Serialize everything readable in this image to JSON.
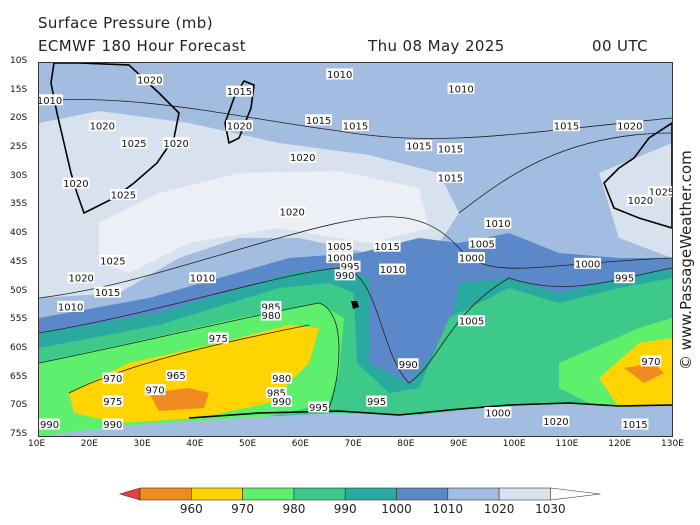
{
  "header": {
    "line1": "Surface Pressure (mb)",
    "line2": "ECMWF 180 Hour Forecast",
    "date": "Thu 08 May 2025",
    "time": "00 UTC"
  },
  "credit": "© www.PassageWeather.com",
  "map": {
    "lat_ticks": [
      "10S",
      "15S",
      "20S",
      "25S",
      "30S",
      "35S",
      "40S",
      "45S",
      "50S",
      "55S",
      "60S",
      "65S",
      "70S",
      "75S"
    ],
    "lon_ticks": [
      "10E",
      "20E",
      "30E",
      "40E",
      "50E",
      "60E",
      "70E",
      "80E",
      "90E",
      "100E",
      "110E",
      "120E",
      "130E"
    ],
    "isobar_labels": [
      {
        "text": "1010",
        "lon": 12,
        "lat": -16.5
      },
      {
        "text": "1020",
        "lon": 31,
        "lat": -13
      },
      {
        "text": "1015",
        "lon": 48,
        "lat": -15
      },
      {
        "text": "1010",
        "lon": 67,
        "lat": -12
      },
      {
        "text": "1010",
        "lon": 90,
        "lat": -14.5
      },
      {
        "text": "1015",
        "lon": 63,
        "lat": -20
      },
      {
        "text": "1015",
        "lon": 70,
        "lat": -21
      },
      {
        "text": "1020",
        "lon": 48,
        "lat": -21
      },
      {
        "text": "1015",
        "lon": 110,
        "lat": -21
      },
      {
        "text": "1020",
        "lon": 122,
        "lat": -21
      },
      {
        "text": "1020",
        "lon": 22,
        "lat": -21
      },
      {
        "text": "1025",
        "lon": 28,
        "lat": -24
      },
      {
        "text": "1020",
        "lon": 36,
        "lat": -24
      },
      {
        "text": "1015",
        "lon": 82,
        "lat": -24.5
      },
      {
        "text": "1015",
        "lon": 88,
        "lat": -25
      },
      {
        "text": "1020",
        "lon": 60,
        "lat": -26.5
      },
      {
        "text": "1015",
        "lon": 88,
        "lat": -30
      },
      {
        "text": "1020",
        "lon": 17,
        "lat": -31
      },
      {
        "text": "1025",
        "lon": 26,
        "lat": -33
      },
      {
        "text": "1025",
        "lon": 128,
        "lat": -32.5
      },
      {
        "text": "1020",
        "lon": 124,
        "lat": -34
      },
      {
        "text": "1020",
        "lon": 58,
        "lat": -36
      },
      {
        "text": "1010",
        "lon": 97,
        "lat": -38
      },
      {
        "text": "1015",
        "lon": 76,
        "lat": -42
      },
      {
        "text": "1005",
        "lon": 67,
        "lat": -42
      },
      {
        "text": "1005",
        "lon": 94,
        "lat": -41.5
      },
      {
        "text": "1000",
        "lon": 67,
        "lat": -44
      },
      {
        "text": "1000",
        "lon": 92,
        "lat": -44
      },
      {
        "text": "1025",
        "lon": 24,
        "lat": -44.5
      },
      {
        "text": "995",
        "lon": 69,
        "lat": -45.5
      },
      {
        "text": "1010",
        "lon": 77,
        "lat": -46
      },
      {
        "text": "1000",
        "lon": 114,
        "lat": -45
      },
      {
        "text": "990",
        "lon": 68,
        "lat": -47
      },
      {
        "text": "1010",
        "lon": 41,
        "lat": -47.5
      },
      {
        "text": "1020",
        "lon": 18,
        "lat": -47.5
      },
      {
        "text": "995",
        "lon": 121,
        "lat": -47.5
      },
      {
        "text": "1015",
        "lon": 23,
        "lat": -50
      },
      {
        "text": "1010",
        "lon": 16,
        "lat": -52.5
      },
      {
        "text": "985",
        "lon": 54,
        "lat": -52.5
      },
      {
        "text": "980",
        "lon": 54,
        "lat": -54
      },
      {
        "text": "1005",
        "lon": 92,
        "lat": -55
      },
      {
        "text": "975",
        "lon": 44,
        "lat": -58
      },
      {
        "text": "990",
        "lon": 80,
        "lat": -62.5
      },
      {
        "text": "970",
        "lon": 126,
        "lat": -62
      },
      {
        "text": "965",
        "lon": 36,
        "lat": -64.5
      },
      {
        "text": "970",
        "lon": 24,
        "lat": -65
      },
      {
        "text": "970",
        "lon": 32,
        "lat": -67
      },
      {
        "text": "980",
        "lon": 56,
        "lat": -65
      },
      {
        "text": "975",
        "lon": 24,
        "lat": -69
      },
      {
        "text": "985",
        "lon": 55,
        "lat": -67.5
      },
      {
        "text": "990",
        "lon": 56,
        "lat": -69
      },
      {
        "text": "995",
        "lon": 63,
        "lat": -70
      },
      {
        "text": "995",
        "lon": 74,
        "lat": -69
      },
      {
        "text": "1000",
        "lon": 97,
        "lat": -71
      },
      {
        "text": "990",
        "lon": 12,
        "lat": -73
      },
      {
        "text": "990",
        "lon": 24,
        "lat": -73
      },
      {
        "text": "1020",
        "lon": 108,
        "lat": -72.5
      },
      {
        "text": "1015",
        "lon": 123,
        "lat": -73
      }
    ]
  },
  "legend": {
    "ticks": [
      "960",
      "970",
      "980",
      "990",
      "1000",
      "1010",
      "1020",
      "1030"
    ],
    "colors": [
      "#e64045",
      "#f08c1f",
      "#ffd400",
      "#5ef06d",
      "#3cc98a",
      "#2aa9a0",
      "#5a88c8",
      "#a3bde0",
      "#d8e2ef",
      "#ffffff"
    ]
  }
}
